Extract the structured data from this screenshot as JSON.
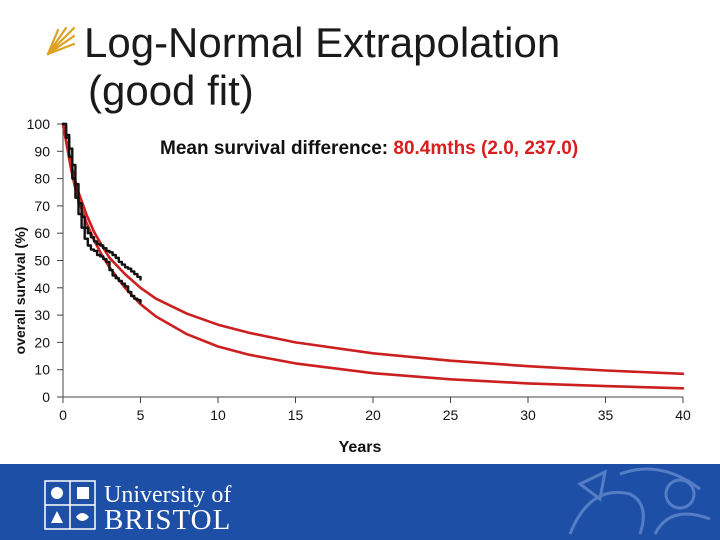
{
  "slide": {
    "title_line1": "Log-Normal Extrapolation",
    "title_line2": "(good fit)",
    "annotation_label": "Mean survival difference: ",
    "annotation_value": "80.4",
    "annotation_unit": "mths (2.0, 237.0)"
  },
  "footer": {
    "university_line1": "University of",
    "university_line2": "BRISTOL",
    "background_color": "#1e4fa6"
  },
  "chart_data": {
    "type": "line",
    "title": "",
    "xlabel": "Years",
    "ylabel": "overall survival (%)",
    "xlim": [
      0,
      40
    ],
    "ylim": [
      0,
      100
    ],
    "x_ticks": [
      0,
      5,
      10,
      15,
      20,
      25,
      30,
      35,
      40
    ],
    "y_ticks": [
      0,
      10,
      20,
      30,
      40,
      50,
      60,
      70,
      80,
      90,
      100
    ],
    "grid": false,
    "legend": "none",
    "series": [
      {
        "color": "#cc1f1f",
        "style": "fitted",
        "x": [
          0,
          0.25,
          0.5,
          0.75,
          1,
          1.5,
          2,
          2.5,
          3,
          4,
          5,
          6,
          8,
          10,
          12,
          15,
          20,
          25,
          30,
          35,
          40
        ],
        "y": [
          100,
          92,
          84,
          77.5,
          72,
          64,
          57.5,
          52,
          47.5,
          40,
          34,
          29.5,
          23,
          18.5,
          15.5,
          12.3,
          8.7,
          6.5,
          5,
          4,
          3.2
        ]
      },
      {
        "color": "#cc1f1f",
        "style": "fitted",
        "x": [
          0,
          0.25,
          0.5,
          0.75,
          1,
          1.5,
          2,
          2.5,
          3,
          4,
          5,
          6,
          8,
          10,
          12,
          15,
          20,
          25,
          30,
          35,
          40
        ],
        "y": [
          100,
          93,
          86,
          80,
          75,
          67,
          60.5,
          55.5,
          51,
          45,
          40,
          36,
          30.5,
          26.5,
          23.5,
          20,
          16,
          13.3,
          11.3,
          9.7,
          8.5
        ]
      },
      {
        "color": "#111111",
        "style": "kaplan-meier",
        "x": [
          0,
          0.2,
          0.4,
          0.6,
          0.8,
          1.0,
          1.2,
          1.4,
          1.6,
          1.8,
          2.0,
          2.2,
          2.4,
          2.6,
          2.8,
          3.0,
          3.2,
          3.4,
          3.6,
          3.8,
          4.0,
          4.2,
          4.4,
          4.6,
          4.8,
          5.0
        ],
        "y": [
          100,
          95,
          88,
          80,
          73,
          67,
          62,
          58,
          55.5,
          54,
          53.5,
          52,
          51.5,
          50.5,
          49.5,
          46.5,
          44.5,
          43.5,
          42.5,
          41.5,
          40.5,
          38.5,
          37,
          36,
          35.5,
          34.5
        ]
      },
      {
        "color": "#111111",
        "style": "kaplan-meier",
        "x": [
          0,
          0.2,
          0.4,
          0.6,
          0.8,
          1.0,
          1.2,
          1.4,
          1.6,
          1.8,
          2.0,
          2.2,
          2.4,
          2.6,
          2.8,
          3.0,
          3.2,
          3.4,
          3.6,
          3.8,
          4.0,
          4.2,
          4.4,
          4.6,
          4.8,
          5.0
        ],
        "y": [
          100,
          96,
          91,
          85,
          78,
          71,
          66,
          62,
          60,
          58.5,
          57,
          56,
          55.5,
          54.5,
          53.5,
          53,
          52,
          51,
          49.5,
          48.5,
          47.5,
          47,
          46,
          45,
          44,
          43
        ]
      }
    ]
  }
}
